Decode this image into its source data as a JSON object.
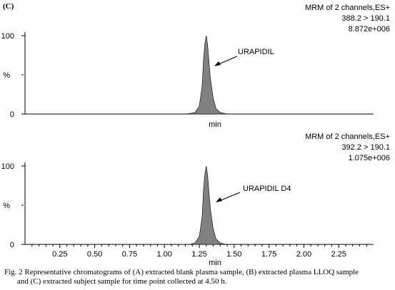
{
  "panel_label": "(C)",
  "caption": {
    "line1": "Fig. 2 Representative chromatograms of (A) extracted blank plasma sample, (B) extracted plasma LLOQ sample",
    "line2": "and (C) extracted subject sample for time point collected at 4.50 h."
  },
  "colors": {
    "peak_fill": "#808080",
    "axis": "#000000"
  },
  "chart_data": [
    {
      "type": "area",
      "info": [
        "MRM of 2 channels,ES+",
        "388.2 > 190.1",
        "8.872e+006"
      ],
      "xlabel": "min",
      "ylabel": "%",
      "y_ticks": [
        "0",
        "100"
      ],
      "ylim": [
        0,
        100
      ],
      "xlim": [
        0,
        2.5
      ],
      "annotation": "URAPIDIL",
      "series": [
        {
          "x": [
            0.0,
            1.14,
            1.18,
            1.22,
            1.25,
            1.27,
            1.28,
            1.29,
            1.3,
            1.31,
            1.32,
            1.33,
            1.35,
            1.37,
            1.4,
            1.45,
            2.5
          ],
          "values": [
            0,
            0,
            0.5,
            2,
            10,
            35,
            70,
            90,
            100,
            88,
            65,
            45,
            20,
            7,
            2,
            0,
            0
          ]
        }
      ]
    },
    {
      "type": "area",
      "info": [
        "MRM of 2 channels,ES+",
        "392.2 > 190.1",
        "1.075e+006"
      ],
      "xlabel": "min",
      "ylabel": "%",
      "y_ticks": [
        "0",
        "100"
      ],
      "ylim": [
        0,
        100
      ],
      "xlim": [
        0,
        2.5
      ],
      "x_ticks": [
        "0.25",
        "0.50",
        "0.75",
        "1.00",
        "1.25",
        "1.50",
        "1.75",
        "2.00",
        "2.25"
      ],
      "annotation": "URAPIDIL D4",
      "series": [
        {
          "x": [
            0.0,
            1.18,
            1.22,
            1.25,
            1.27,
            1.28,
            1.29,
            1.3,
            1.31,
            1.32,
            1.33,
            1.35,
            1.37,
            1.4,
            1.44,
            2.5
          ],
          "values": [
            0,
            0,
            2,
            10,
            35,
            70,
            90,
            100,
            88,
            65,
            45,
            20,
            7,
            2,
            0,
            0
          ]
        }
      ]
    }
  ]
}
